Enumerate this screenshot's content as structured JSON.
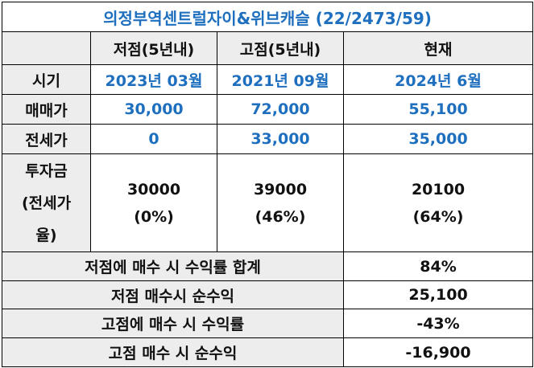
{
  "title": "의정부역센트럴자이&위브캐슬 (22/2473/59)",
  "headers": {
    "corner": "",
    "low": "저점(5년내)",
    "high": "고점(5년내)",
    "current": "현재"
  },
  "rows": {
    "period": {
      "label": "시기",
      "low": "2023년 03월",
      "high": "2021년 09월",
      "current": "2024년 6월"
    },
    "price": {
      "label": "매매가",
      "low": "30,000",
      "high": "72,000",
      "current": "55,100"
    },
    "jeonse": {
      "label": "전세가",
      "low": "0",
      "high": "33,000",
      "current": "35,000"
    },
    "invest": {
      "label_lines": [
        "투자금",
        "(전세가",
        "율)"
      ],
      "low": {
        "amount": "30000",
        "ratio": "(0%)"
      },
      "high": {
        "amount": "39000",
        "ratio": "(46%)"
      },
      "current": {
        "amount": "20100",
        "ratio": "(64%)"
      }
    }
  },
  "summary": [
    {
      "label": "저점에 매수 시 수익률 합계",
      "value": "84%"
    },
    {
      "label": "저점 매수시 순수익",
      "value": "25,100"
    },
    {
      "label": "고점에 매수 시 수익률",
      "value": "-43%"
    },
    {
      "label": "고점 매수 시 순수익",
      "value": "-16,900"
    }
  ],
  "colors": {
    "header_bg": "#ededed",
    "accent_blue": "#1f6fbf",
    "border": "#000000"
  }
}
